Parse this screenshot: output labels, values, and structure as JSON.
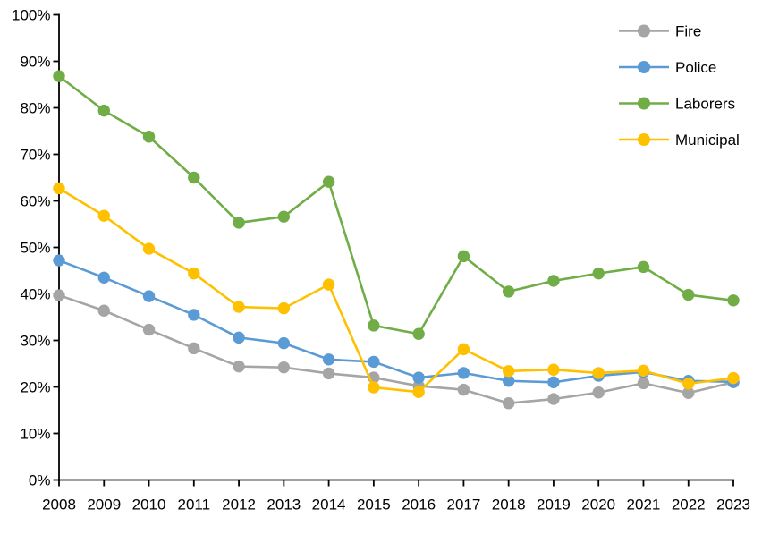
{
  "page": {
    "background_color": "#ffffff",
    "axis_color": "#000000",
    "text_color": "#000000"
  },
  "chart_data": {
    "type": "line",
    "title": "",
    "xlabel": "",
    "ylabel": "",
    "x": [
      2008,
      2009,
      2010,
      2011,
      2012,
      2013,
      2014,
      2015,
      2016,
      2017,
      2018,
      2019,
      2020,
      2021,
      2022,
      2023
    ],
    "x_tick_labels": [
      "2008",
      "2009",
      "2010",
      "2011",
      "2012",
      "2013",
      "2014",
      "2015",
      "2016",
      "2017",
      "2018",
      "2019",
      "2020",
      "2021",
      "2022",
      "2023"
    ],
    "ylim": [
      0,
      100
    ],
    "ytick_step": 10,
    "ytick_labels": [
      "0%",
      "10%",
      "20%",
      "30%",
      "40%",
      "50%",
      "60%",
      "70%",
      "80%",
      "90%",
      "100%"
    ],
    "ytick_suffix": "%",
    "grid": false,
    "marker": "circle",
    "legend_position": "top-right",
    "legend_items": [
      "Fire",
      "Police",
      "Laborers",
      "Municipal"
    ],
    "series": [
      {
        "name": "Fire",
        "color": "#A5A5A5",
        "values": [
          39.7,
          36.4,
          32.3,
          28.3,
          24.4,
          24.2,
          22.9,
          22.0,
          20.2,
          19.4,
          16.5,
          17.4,
          18.8,
          20.8,
          18.7,
          21.0
        ]
      },
      {
        "name": "Police",
        "color": "#5B9BD5",
        "values": [
          47.2,
          43.5,
          39.5,
          35.5,
          30.6,
          29.4,
          25.9,
          25.4,
          22.0,
          23.0,
          21.3,
          21.0,
          22.4,
          23.2,
          21.3,
          21.1
        ]
      },
      {
        "name": "Laborers",
        "color": "#70AD47",
        "values": [
          86.8,
          79.4,
          73.8,
          65.0,
          55.3,
          56.6,
          64.1,
          33.2,
          31.4,
          48.1,
          40.5,
          42.8,
          44.4,
          45.8,
          39.8,
          38.6
        ]
      },
      {
        "name": "Municipal",
        "color": "#FFC000",
        "values": [
          62.7,
          56.8,
          49.7,
          44.4,
          37.2,
          36.9,
          42.0,
          19.9,
          18.9,
          28.1,
          23.4,
          23.7,
          23.0,
          23.5,
          20.7,
          21.9
        ]
      }
    ]
  }
}
